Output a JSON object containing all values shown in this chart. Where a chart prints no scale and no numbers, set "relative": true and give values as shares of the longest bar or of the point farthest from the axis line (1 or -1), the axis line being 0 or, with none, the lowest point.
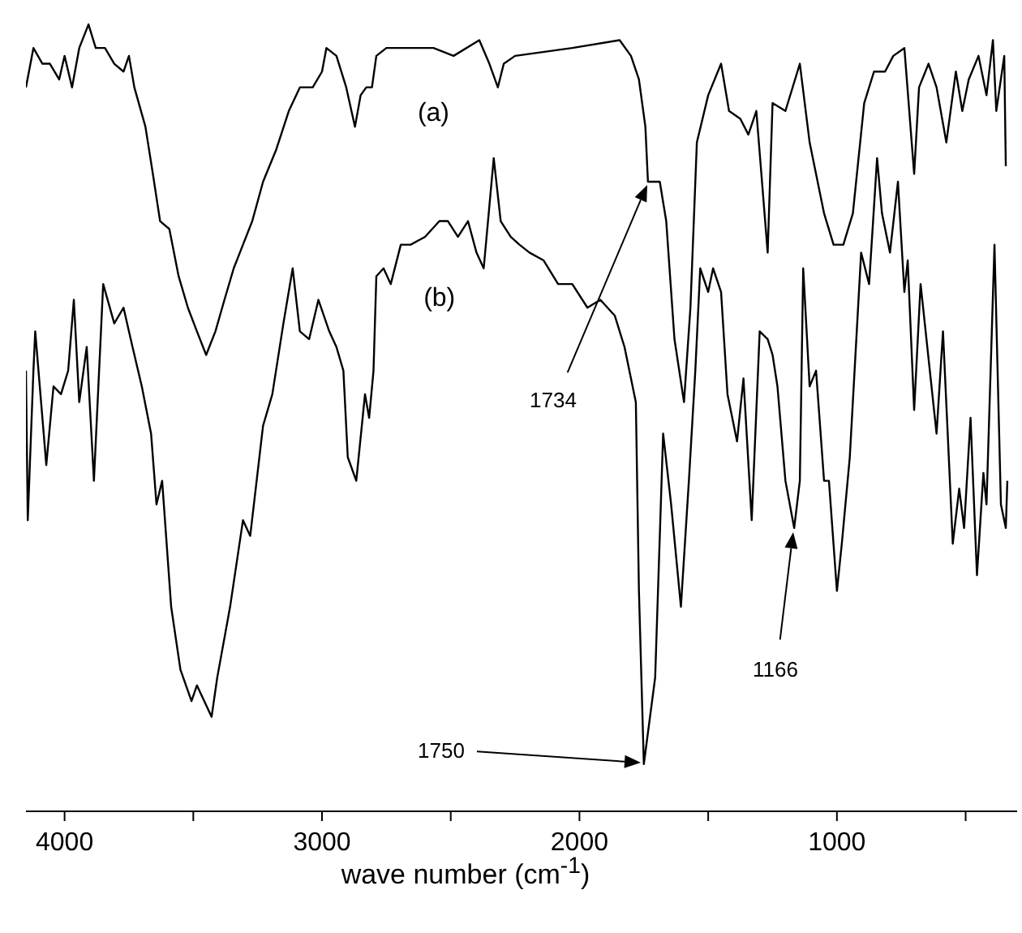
{
  "chart_data": {
    "type": "line",
    "relative": true,
    "xlabel": "wave number (cm$^{-1}$)",
    "xlim": [
      4150,
      300
    ],
    "xticks": [
      4000,
      {
        "value": 3500,
        "label": null
      },
      3000,
      {
        "value": 2500,
        "label": null
      },
      2000,
      {
        "value": 1500,
        "label": null
      },
      1000,
      {
        "value": 500,
        "label": null
      }
    ],
    "tick_labels": "x",
    "marker": "none",
    "line_style": "solid",
    "series": [
      {
        "name": "(a)",
        "color": "#000000",
        "x": [
          4150,
          4121,
          4086,
          4057,
          4021,
          4000,
          3971,
          3943,
          3907,
          3879,
          3843,
          3807,
          3771,
          3750,
          3729,
          3686,
          3657,
          3629,
          3593,
          3557,
          3521,
          3486,
          3450,
          3414,
          3379,
          3343,
          3307,
          3271,
          3229,
          3179,
          3129,
          3086,
          3036,
          3000,
          2983,
          2944,
          2906,
          2872,
          2850,
          2828,
          2806,
          2789,
          2750,
          2678,
          2567,
          2489,
          2389,
          2350,
          2317,
          2294,
          2250,
          2028,
          1844,
          1800,
          1769,
          1744,
          1734,
          1688,
          1663,
          1631,
          1594,
          1569,
          1544,
          1500,
          1450,
          1419,
          1375,
          1344,
          1313,
          1269,
          1250,
          1200,
          1144,
          1106,
          1050,
          1013,
          975,
          938,
          894,
          856,
          813,
          781,
          738,
          700,
          681,
          644,
          613,
          575,
          538,
          513,
          488,
          450,
          419,
          394,
          381,
          350,
          344
        ],
        "values": [
          0.92,
          0.97,
          0.95,
          0.95,
          0.93,
          0.96,
          0.92,
          0.97,
          1.0,
          0.97,
          0.97,
          0.95,
          0.94,
          0.96,
          0.92,
          0.87,
          0.81,
          0.75,
          0.74,
          0.68,
          0.64,
          0.61,
          0.58,
          0.61,
          0.65,
          0.69,
          0.72,
          0.75,
          0.8,
          0.84,
          0.89,
          0.92,
          0.92,
          0.94,
          0.97,
          0.96,
          0.92,
          0.87,
          0.91,
          0.92,
          0.92,
          0.96,
          0.97,
          0.97,
          0.97,
          0.96,
          0.98,
          0.95,
          0.92,
          0.95,
          0.96,
          0.97,
          0.98,
          0.96,
          0.93,
          0.87,
          0.8,
          0.8,
          0.75,
          0.6,
          0.52,
          0.64,
          0.85,
          0.91,
          0.95,
          0.89,
          0.88,
          0.86,
          0.89,
          0.71,
          0.9,
          0.89,
          0.95,
          0.85,
          0.76,
          0.72,
          0.72,
          0.76,
          0.9,
          0.94,
          0.94,
          0.96,
          0.97,
          0.81,
          0.92,
          0.95,
          0.92,
          0.85,
          0.94,
          0.89,
          0.93,
          0.96,
          0.91,
          0.98,
          0.89,
          0.96,
          0.82
        ]
      },
      {
        "name": "(b)",
        "color": "#000000",
        "x": [
          4150,
          4143,
          4121,
          4114,
          4071,
          4043,
          4014,
          3986,
          3964,
          3943,
          3914,
          3886,
          3850,
          3807,
          3771,
          3736,
          3700,
          3664,
          3643,
          3621,
          3586,
          3550,
          3507,
          3486,
          3429,
          3407,
          3357,
          3307,
          3279,
          3229,
          3193,
          3150,
          3114,
          3086,
          3050,
          3014,
          2972,
          2944,
          2917,
          2900,
          2867,
          2833,
          2817,
          2800,
          2789,
          2761,
          2733,
          2694,
          2656,
          2600,
          2544,
          2511,
          2472,
          2433,
          2400,
          2372,
          2333,
          2306,
          2267,
          2233,
          2194,
          2139,
          2083,
          2028,
          1969,
          1919,
          1863,
          1825,
          1781,
          1769,
          1750,
          1706,
          1675,
          1644,
          1606,
          1575,
          1550,
          1531,
          1500,
          1481,
          1450,
          1425,
          1388,
          1363,
          1331,
          1300,
          1269,
          1250,
          1231,
          1200,
          1166,
          1144,
          1131,
          1106,
          1081,
          1050,
          1031,
          1000,
          981,
          950,
          906,
          875,
          844,
          825,
          794,
          763,
          738,
          725,
          700,
          675,
          613,
          588,
          550,
          525,
          506,
          481,
          456,
          431,
          419,
          388,
          363,
          344,
          338
        ],
        "values": [
          0.56,
          0.37,
          0.56,
          0.61,
          0.44,
          0.54,
          0.53,
          0.56,
          0.65,
          0.52,
          0.59,
          0.42,
          0.67,
          0.62,
          0.64,
          0.59,
          0.54,
          0.48,
          0.39,
          0.42,
          0.26,
          0.18,
          0.14,
          0.16,
          0.12,
          0.17,
          0.26,
          0.37,
          0.35,
          0.49,
          0.53,
          0.62,
          0.69,
          0.61,
          0.6,
          0.65,
          0.61,
          0.59,
          0.56,
          0.45,
          0.42,
          0.53,
          0.5,
          0.56,
          0.68,
          0.69,
          0.67,
          0.72,
          0.72,
          0.73,
          0.75,
          0.75,
          0.73,
          0.75,
          0.71,
          0.69,
          0.83,
          0.75,
          0.73,
          0.72,
          0.71,
          0.7,
          0.67,
          0.67,
          0.64,
          0.65,
          0.63,
          0.59,
          0.52,
          0.28,
          0.06,
          0.17,
          0.48,
          0.39,
          0.26,
          0.42,
          0.56,
          0.69,
          0.66,
          0.69,
          0.66,
          0.53,
          0.47,
          0.55,
          0.37,
          0.61,
          0.6,
          0.58,
          0.54,
          0.42,
          0.36,
          0.42,
          0.69,
          0.54,
          0.56,
          0.42,
          0.42,
          0.28,
          0.34,
          0.45,
          0.71,
          0.67,
          0.83,
          0.76,
          0.71,
          0.8,
          0.66,
          0.7,
          0.51,
          0.67,
          0.48,
          0.61,
          0.34,
          0.41,
          0.36,
          0.5,
          0.3,
          0.43,
          0.39,
          0.72,
          0.39,
          0.36,
          0.42
        ]
      }
    ],
    "annotations": [
      "1734",
      "1750",
      "1166"
    ]
  }
}
